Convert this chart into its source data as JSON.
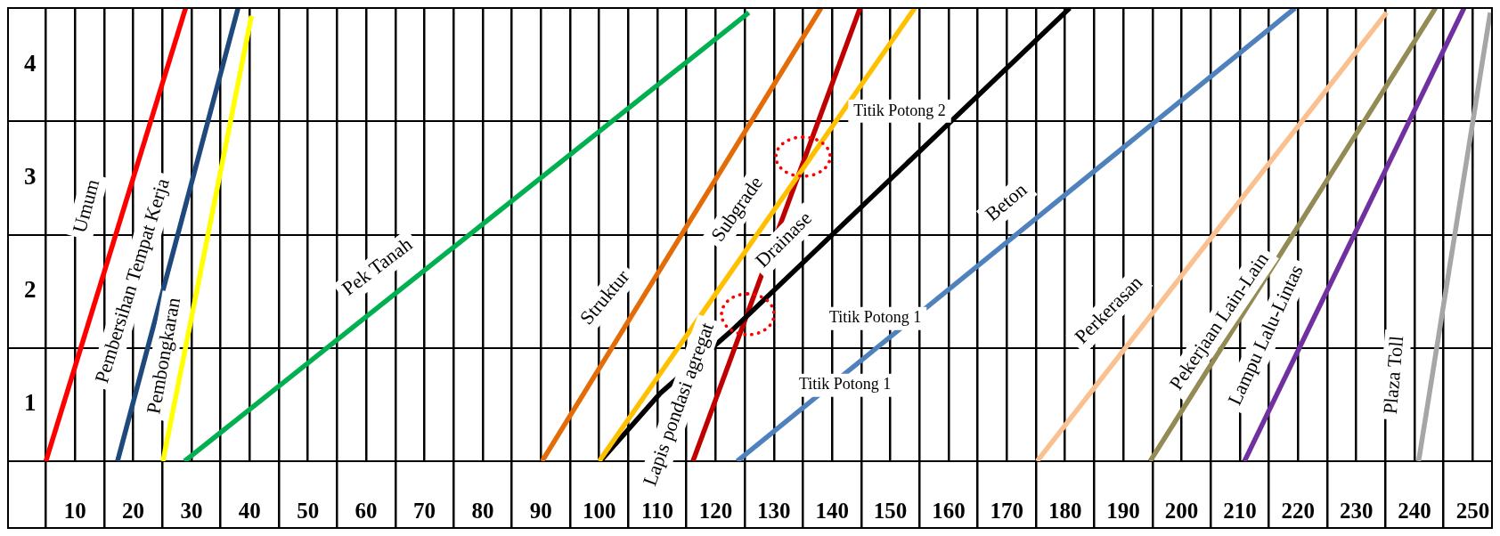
{
  "chart_data": {
    "type": "line",
    "xlim": [
      -1.5,
      253.3
    ],
    "ylim": [
      0,
      4
    ],
    "xticks": [
      {
        "value": 5,
        "label": null
      },
      10,
      {
        "value": 15,
        "label": null
      },
      20,
      {
        "value": 25,
        "label": null
      },
      30,
      {
        "value": 35,
        "label": null
      },
      40,
      {
        "value": 45,
        "label": null
      },
      50,
      {
        "value": 55,
        "label": null
      },
      60,
      {
        "value": 65,
        "label": null
      },
      70,
      {
        "value": 75,
        "label": null
      },
      80,
      {
        "value": 85,
        "label": null
      },
      90,
      {
        "value": 95,
        "label": null
      },
      100,
      {
        "value": 105,
        "label": null
      },
      110,
      {
        "value": 115,
        "label": null
      },
      120,
      {
        "value": 125,
        "label": null
      },
      130,
      {
        "value": 135,
        "label": null
      },
      140,
      {
        "value": 145,
        "label": null
      },
      150,
      {
        "value": 155,
        "label": null
      },
      160,
      {
        "value": 165,
        "label": null
      },
      170,
      {
        "value": 175,
        "label": null
      },
      180,
      {
        "value": 185,
        "label": null
      },
      190,
      {
        "value": 195,
        "label": null
      },
      200,
      {
        "value": 205,
        "label": null
      },
      210,
      {
        "value": 215,
        "label": null
      },
      220,
      {
        "value": 225,
        "label": null
      },
      230,
      {
        "value": 235,
        "label": null
      },
      240,
      {
        "value": 245,
        "label": null
      },
      250
    ],
    "yticks": [
      {
        "value": 0.5,
        "label": "1"
      },
      {
        "value": 1,
        "label": null
      },
      {
        "value": 1.5,
        "label": "2"
      },
      {
        "value": 2,
        "label": null
      },
      {
        "value": 2.5,
        "label": "3"
      },
      {
        "value": 3,
        "label": null
      },
      {
        "value": 3.5,
        "label": "4"
      }
    ],
    "grid": true,
    "legend": false,
    "marker": "none",
    "line_style": "solid",
    "series": [
      {
        "name": "Umum",
        "color": "#ff0000",
        "x": [
          5,
          29
        ],
        "values": [
          0,
          4
        ]
      },
      {
        "name": "Pembersihan Tempat Kerja",
        "color": "#1f497d",
        "x": [
          17.3,
          38
        ],
        "values": [
          0,
          4
        ]
      },
      {
        "name": "Pembongkaran",
        "color": "#ffff00",
        "x": [
          25.1,
          40.3
        ],
        "values": [
          0,
          3.93
        ]
      },
      {
        "name": "Pek Tanah",
        "color": "#00b050",
        "x": [
          28.8,
          125.7
        ],
        "values": [
          0,
          3.96
        ]
      },
      {
        "name": "Struktur",
        "color": "#e36c09",
        "x": [
          90.2,
          138.1
        ],
        "values": [
          0,
          4
        ]
      },
      {
        "name": "Subgrade",
        "color": "#ffc000",
        "x": [
          100,
          154.2
        ],
        "values": [
          0,
          4
        ]
      },
      {
        "name": "Drainase",
        "color": "#000000",
        "x": [
          100.2,
          110.5,
          122.5,
          180.8
        ],
        "values": [
          0,
          0.6,
          1.14,
          4
        ]
      },
      {
        "name": "Lapis pondasi agregat",
        "color": "#c00000",
        "x": [
          116.1,
          144.8
        ],
        "values": [
          0,
          4
        ]
      },
      {
        "name": "Beton",
        "color": "#4f81bd",
        "x": [
          123.7,
          219.5
        ],
        "values": [
          0,
          4
        ]
      },
      {
        "name": "Perkerasan",
        "color": "#fac090",
        "x": [
          175.2,
          235.2
        ],
        "values": [
          0,
          3.96
        ]
      },
      {
        "name": "Pekerjaan Lain-Lain",
        "color": "#948a54",
        "x": [
          194.6,
          243.6
        ],
        "values": [
          0,
          4
        ]
      },
      {
        "name": "Lampu Lalu-Lintas",
        "color": "#7030a0",
        "x": [
          210.8,
          248.5
        ],
        "values": [
          0,
          4
        ]
      },
      {
        "name": "Plaza Toll",
        "color": "#a6a6a6",
        "x": [
          240.7,
          253
        ],
        "values": [
          0,
          3.96
        ]
      }
    ],
    "annotations": [
      "Titik Potong 2",
      "Titik Potong 1",
      "Titik Potong 1"
    ]
  }
}
